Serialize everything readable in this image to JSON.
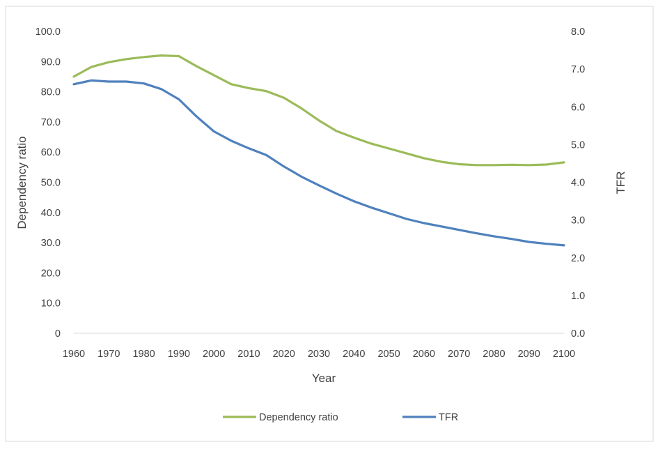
{
  "chart_data": {
    "type": "line",
    "xlabel": "Year",
    "ylabel": "Dependency ratio",
    "y2label": "TFR",
    "x": [
      1960,
      1965,
      1970,
      1975,
      1980,
      1985,
      1990,
      1995,
      2000,
      2005,
      2010,
      2015,
      2020,
      2025,
      2030,
      2035,
      2040,
      2045,
      2050,
      2055,
      2060,
      2065,
      2070,
      2075,
      2080,
      2085,
      2090,
      2095,
      2100
    ],
    "x_tick_labels": [
      "1960",
      "1970",
      "1980",
      "1990",
      "2000",
      "2010",
      "2020",
      "2030",
      "2040",
      "2050",
      "2060",
      "2070",
      "2080",
      "2090",
      "2100"
    ],
    "ylim": [
      0,
      100
    ],
    "y_tick_labels": [
      "0",
      "10.0",
      "20.0",
      "30.0",
      "40.0",
      "50.0",
      "60.0",
      "70.0",
      "80.0",
      "90.0",
      "100.0"
    ],
    "y2lim": [
      0,
      8
    ],
    "y2_tick_labels": [
      "0.0",
      "1.0",
      "2.0",
      "3.0",
      "4.0",
      "5.0",
      "6.0",
      "7.0",
      "8.0"
    ],
    "grid": false,
    "legend_position": "bottom",
    "series": [
      {
        "name": "Dependency ratio",
        "axis": "left",
        "color": "#9bbb59",
        "values": [
          85.0,
          88.2,
          89.8,
          90.8,
          91.5,
          92.0,
          91.8,
          88.5,
          85.5,
          82.5,
          81.2,
          80.2,
          78.0,
          74.5,
          70.5,
          67.0,
          64.8,
          62.8,
          61.2,
          59.6,
          58.0,
          56.8,
          56.0,
          55.7,
          55.7,
          55.8,
          55.7,
          55.9,
          56.6
        ]
      },
      {
        "name": "TFR",
        "axis": "right",
        "color": "#4f81bd",
        "values": [
          6.6,
          6.7,
          6.67,
          6.67,
          6.62,
          6.47,
          6.2,
          5.75,
          5.35,
          5.1,
          4.9,
          4.72,
          4.42,
          4.15,
          3.92,
          3.7,
          3.5,
          3.33,
          3.18,
          3.03,
          2.92,
          2.83,
          2.74,
          2.65,
          2.57,
          2.5,
          2.42,
          2.37,
          2.33
        ]
      }
    ]
  }
}
